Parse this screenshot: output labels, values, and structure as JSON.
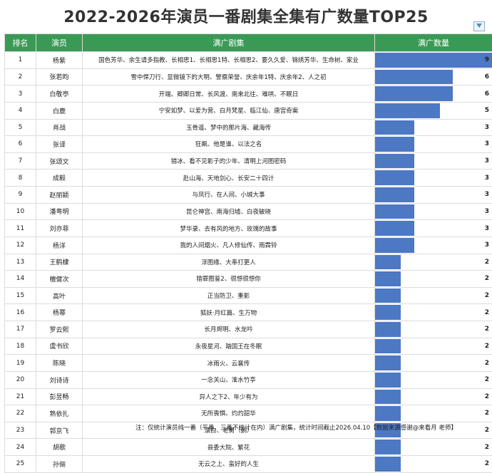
{
  "title": "2022-2026年演员一番剧集全集有广数量TOP25",
  "headers": {
    "rank": "排名",
    "actor": "演员",
    "dramas": "满广剧集",
    "count": "满广数量"
  },
  "chart_data": {
    "type": "table",
    "title": "2022-2026年演员一番剧集全集有广数量TOP25",
    "columns": [
      "排名",
      "演员",
      "满广剧集",
      "满广数量"
    ],
    "xlim": [
      0,
      9
    ],
    "rows": [
      {
        "rank": "1",
        "actor": "杨紫",
        "dramas": "国色芳华、余生请多指教、长相思1、长相思1特、长相思2、要久久爱、锦绣芳华、生命树、家业",
        "count": 9
      },
      {
        "rank": "2",
        "actor": "张若昀",
        "dramas": "雪中悍刀行、显微镜下的大明、警察荣誉、庆余年1特、庆余年2、人之初",
        "count": 6
      },
      {
        "rank": "3",
        "actor": "白敬亭",
        "dramas": "开端、卿卿日常、长风渡、南来北往、难哄、不眠日",
        "count": 6
      },
      {
        "rank": "4",
        "actor": "白鹿",
        "dramas": "宁安如梦、以爱为营、白月梵星、临江仙、唐宫奇案",
        "count": 5
      },
      {
        "rank": "5",
        "actor": "肖战",
        "dramas": "玉骨遥、梦中的那片海、藏海传",
        "count": 3
      },
      {
        "rank": "6",
        "actor": "张译",
        "dramas": "狂飙、他是谁、以法之名",
        "count": 3
      },
      {
        "rank": "7",
        "actor": "张颂文",
        "dramas": "猎冰、看不见影子的少年、清明上河图密码",
        "count": 3
      },
      {
        "rank": "8",
        "actor": "成毅",
        "dramas": "赴山海、天地剑心、长安二十四计",
        "count": 3
      },
      {
        "rank": "9",
        "actor": "赵丽颖",
        "dramas": "与凤行、在人间、小城大事",
        "count": 3
      },
      {
        "rank": "10",
        "actor": "潘粤明",
        "dramas": "昆仑神宫、南海归墟、白夜破晓",
        "count": 3
      },
      {
        "rank": "11",
        "actor": "刘亦菲",
        "dramas": "梦华录、去有风的地方、玫瑰的故事",
        "count": 3
      },
      {
        "rank": "12",
        "actor": "杨洋",
        "dramas": "我的人间烟火、凡人修仙传、雨霖铃",
        "count": 3
      },
      {
        "rank": "13",
        "actor": "王鹤棣",
        "dramas": "浮图缘、大奉打更人",
        "count": 2
      },
      {
        "rank": "14",
        "actor": "檀健次",
        "dramas": "猎罪图鉴2、很想很想你",
        "count": 2
      },
      {
        "rank": "15",
        "actor": "高叶",
        "dramas": "正当防卫、重影",
        "count": 2
      },
      {
        "rank": "16",
        "actor": "杨幂",
        "dramas": "狐妖·月红篇、生万物",
        "count": 2
      },
      {
        "rank": "17",
        "actor": "罗云熙",
        "dramas": "长月烬明、水龙吟",
        "count": 2
      },
      {
        "rank": "18",
        "actor": "虞书欣",
        "dramas": "永夜星河、踏国王在冬眠",
        "count": 2
      },
      {
        "rank": "19",
        "actor": "陈晓",
        "dramas": "冰雨火、云襄传",
        "count": 2
      },
      {
        "rank": "20",
        "actor": "刘诗诗",
        "dramas": "一念关山、淮水竹亭",
        "count": 2
      },
      {
        "rank": "21",
        "actor": "彭昱畅",
        "dramas": "异人之下2、年少有为",
        "count": 2
      },
      {
        "rank": "22",
        "actor": "熟依扎",
        "dramas": "无所畏惧、灼灼韶华",
        "count": 2
      },
      {
        "rank": "23",
        "actor": "郭京飞",
        "dramas": "漂白、老舅（鹅）",
        "count": 2
      },
      {
        "rank": "24",
        "actor": "胡歌",
        "dramas": "县委大院、繁花",
        "count": 2
      },
      {
        "rank": "25",
        "actor": "孙俪",
        "dramas": "无云之上、蛮好的人生",
        "count": 2
      }
    ]
  },
  "note": "注：仅统计演员纯一番（平番、三番不统计在内）满广剧集，统计时间截止2026.04.10【数据来源感谢@来看月 老师】",
  "colors": {
    "header": "#3a9a55",
    "bar": "#4c78c4"
  }
}
